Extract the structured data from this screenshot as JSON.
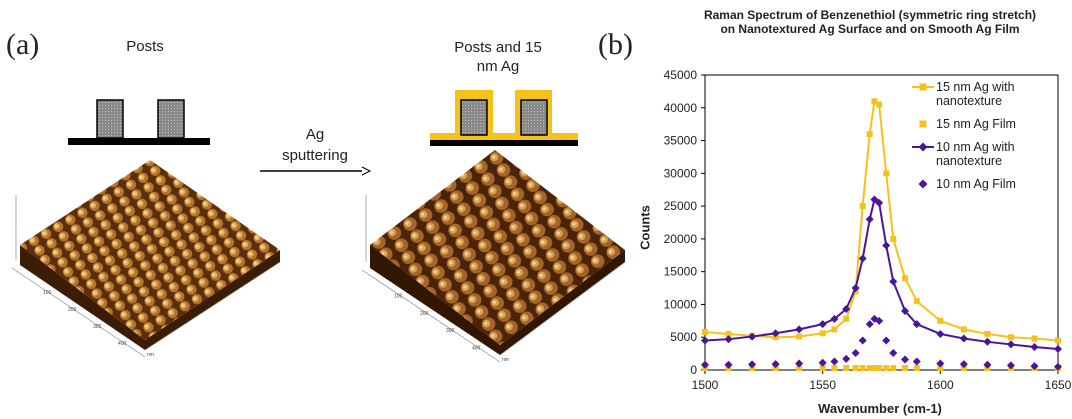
{
  "panels": {
    "a": "(a)",
    "b": "(b)"
  },
  "diagram": {
    "left_label": "Posts",
    "right_label": "Posts and 15 nm Ag",
    "arrow_label": "Ag sputtering",
    "afm_ticks": [
      "100",
      "200",
      "300",
      "400"
    ],
    "afm_unit": "nm"
  },
  "chart_data": {
    "type": "line",
    "title": "Raman Spectrum of Benzenethiol (symmetric ring stretch) on Nanotextured Ag Surface and on Smooth Ag Film",
    "x_label": "Wavenumber (cm-1)",
    "y_label": "Counts",
    "x": [
      1500,
      1510,
      1520,
      1530,
      1540,
      1550,
      1555,
      1560,
      1564,
      1567,
      1570,
      1572,
      1574,
      1577,
      1580,
      1585,
      1590,
      1600,
      1610,
      1620,
      1630,
      1640,
      1650
    ],
    "series": [
      {
        "name": "15 nm Ag with nanotexture",
        "color": "#f5c21b",
        "marker": "square",
        "line": true,
        "values": [
          5800,
          5500,
          5200,
          5000,
          5100,
          5600,
          6200,
          7800,
          12000,
          25000,
          36000,
          41000,
          40500,
          30000,
          20000,
          14000,
          10500,
          7500,
          6200,
          5500,
          5000,
          4800,
          4500
        ]
      },
      {
        "name": "15 nm Ag Film",
        "color": "#f5c21b",
        "marker": "square",
        "line": false,
        "values": [
          300,
          300,
          300,
          300,
          300,
          300,
          300,
          300,
          300,
          300,
          300,
          300,
          300,
          300,
          300,
          300,
          300,
          300,
          300,
          300,
          300,
          300,
          300
        ]
      },
      {
        "name": "10 nm Ag with nanotexture",
        "color": "#4a1596",
        "marker": "diamond",
        "line": true,
        "values": [
          4500,
          4700,
          5100,
          5600,
          6200,
          7000,
          7800,
          9300,
          12500,
          17000,
          23000,
          26000,
          25500,
          19000,
          13500,
          9000,
          7000,
          5500,
          4800,
          4300,
          3900,
          3500,
          3200
        ]
      },
      {
        "name": "10 nm Ag Film",
        "color": "#4a1596",
        "marker": "diamond",
        "line": false,
        "values": [
          800,
          800,
          850,
          900,
          1000,
          1100,
          1300,
          1700,
          2600,
          4500,
          7000,
          7800,
          7500,
          4500,
          2600,
          1600,
          1300,
          1000,
          900,
          800,
          700,
          600,
          500
        ]
      }
    ],
    "xlim": [
      1500,
      1650
    ],
    "xticks": [
      1500,
      1550,
      1600,
      1650
    ],
    "ylim": [
      0,
      45000
    ],
    "yticks": [
      0,
      5000,
      10000,
      15000,
      20000,
      25000,
      30000,
      35000,
      40000,
      45000
    ],
    "legend": "upper right"
  }
}
